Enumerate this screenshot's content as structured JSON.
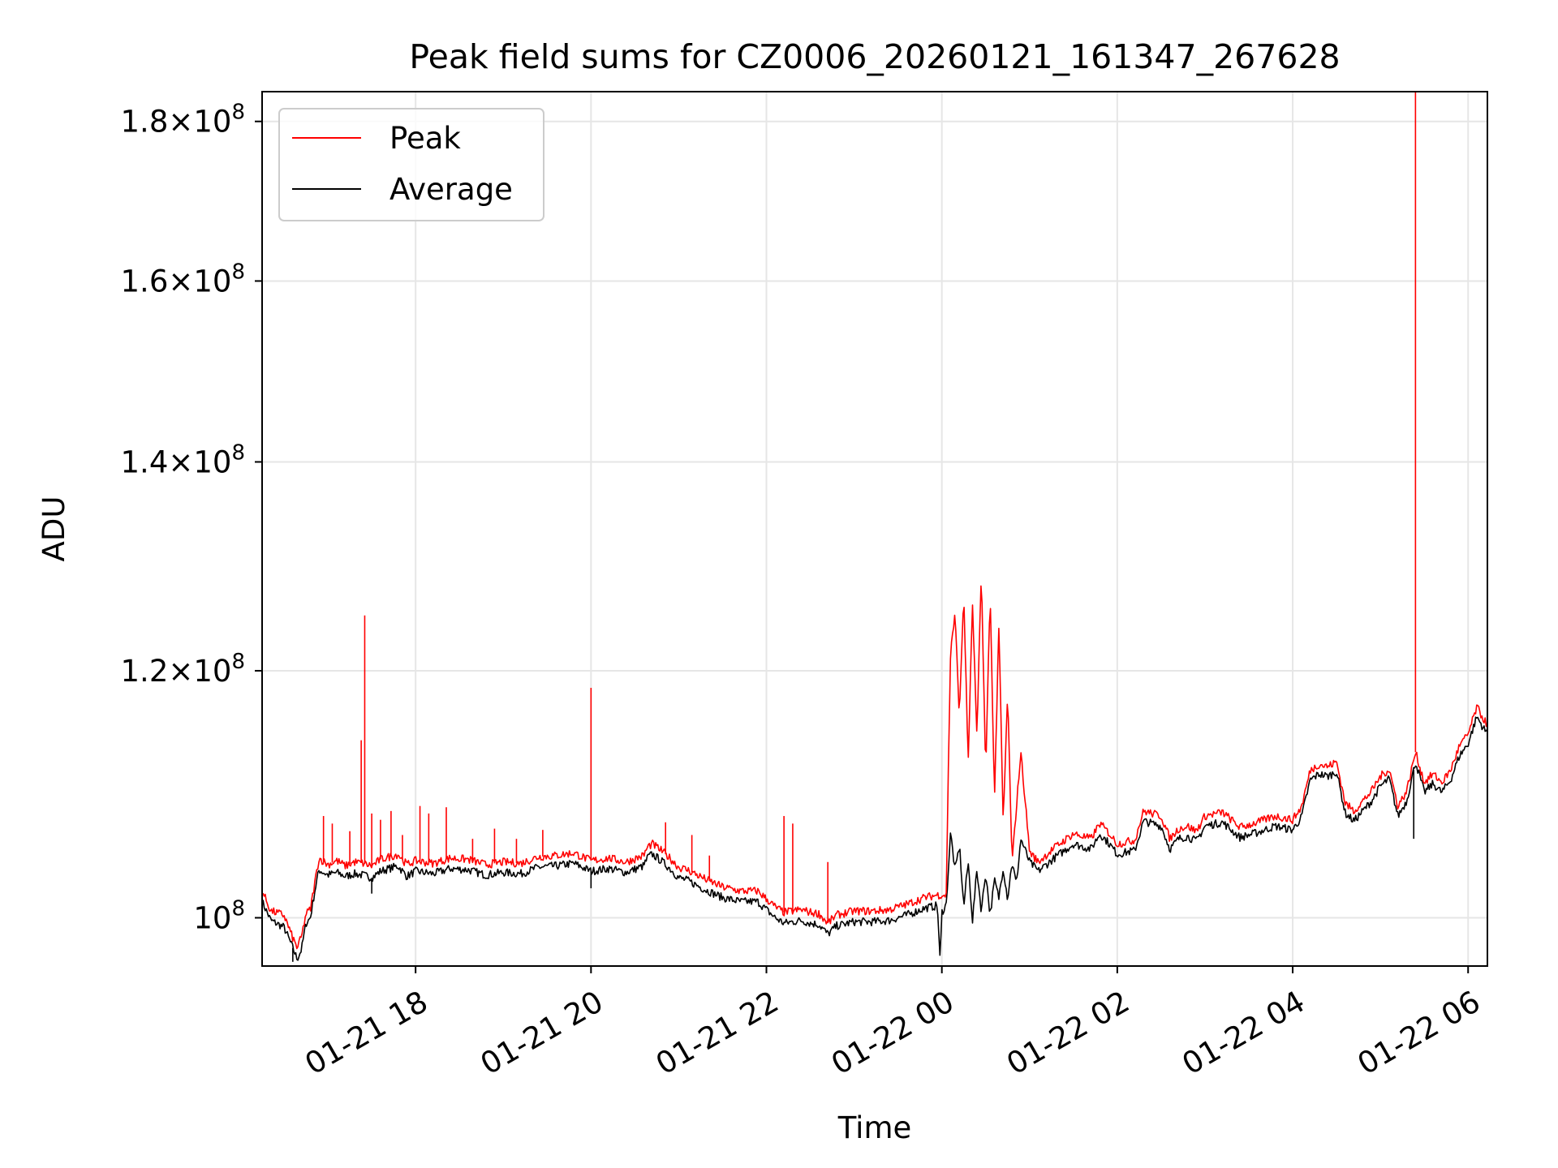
{
  "chart_data": {
    "type": "line",
    "title": "Peak field sums for CZ0006_20260121_161347_267628",
    "xlabel": "Time",
    "ylabel": "ADU",
    "yscale": "log",
    "ylim": [
      96500000,
      184000000
    ],
    "xlim_hours": [
      16.25,
      30.22
    ],
    "x_unit": "hours since 2026-01-21 00:00",
    "grid": true,
    "legend_position": "upper left",
    "y_ticks": [
      {
        "value": 100000000,
        "mantissa": "",
        "exponent": "8"
      },
      {
        "value": 120000000,
        "mantissa": "1.2",
        "exponent": "8"
      },
      {
        "value": 140000000,
        "mantissa": "1.4",
        "exponent": "8"
      },
      {
        "value": 160000000,
        "mantissa": "1.6",
        "exponent": "8"
      },
      {
        "value": 180000000,
        "mantissa": "1.8",
        "exponent": "8"
      }
    ],
    "x_ticks": [
      {
        "hour": 18,
        "label": "01-21 18"
      },
      {
        "hour": 20,
        "label": "01-21 20"
      },
      {
        "hour": 22,
        "label": "01-21 22"
      },
      {
        "hour": 24,
        "label": "01-22 00"
      },
      {
        "hour": 26,
        "label": "01-22 02"
      },
      {
        "hour": 28,
        "label": "01-22 04"
      },
      {
        "hour": 30,
        "label": "01-22 06"
      }
    ],
    "series": [
      {
        "name": "Peak",
        "color": "#ff0000",
        "points": [
          [
            16.25,
            102000000
          ],
          [
            16.35,
            100500000
          ],
          [
            16.5,
            100200000
          ],
          [
            16.6,
            98500000
          ],
          [
            16.65,
            97800000
          ],
          [
            16.7,
            98600000
          ],
          [
            16.75,
            100300000
          ],
          [
            16.8,
            100600000
          ],
          [
            16.85,
            102600000
          ],
          [
            16.9,
            104500000
          ],
          [
            17.0,
            104000000
          ],
          [
            17.1,
            104300000
          ],
          [
            17.2,
            103900000
          ],
          [
            17.3,
            104200000
          ],
          [
            17.4,
            104100000
          ],
          [
            17.5,
            103900000
          ],
          [
            17.6,
            104400000
          ],
          [
            17.7,
            104600000
          ],
          [
            17.8,
            104800000
          ],
          [
            17.9,
            104000000
          ],
          [
            18.0,
            104300000
          ],
          [
            18.2,
            104100000
          ],
          [
            18.4,
            104500000
          ],
          [
            18.6,
            104400000
          ],
          [
            18.8,
            104000000
          ],
          [
            19.0,
            104200000
          ],
          [
            19.2,
            104100000
          ],
          [
            19.4,
            104600000
          ],
          [
            19.6,
            104700000
          ],
          [
            19.8,
            104900000
          ],
          [
            20.0,
            104300000
          ],
          [
            20.2,
            104500000
          ],
          [
            20.4,
            104200000
          ],
          [
            20.6,
            104700000
          ],
          [
            20.65,
            105400000
          ],
          [
            20.7,
            105600000
          ],
          [
            20.8,
            105100000
          ],
          [
            20.9,
            104500000
          ],
          [
            21.0,
            103800000
          ],
          [
            21.1,
            103600000
          ],
          [
            21.3,
            102900000
          ],
          [
            21.5,
            102300000
          ],
          [
            21.7,
            102000000
          ],
          [
            21.9,
            102000000
          ],
          [
            22.0,
            101400000
          ],
          [
            22.1,
            100800000
          ],
          [
            22.2,
            100400000
          ],
          [
            22.4,
            100600000
          ],
          [
            22.5,
            100400000
          ],
          [
            22.6,
            100300000
          ],
          [
            22.7,
            99600000
          ],
          [
            22.8,
            100200000
          ],
          [
            23.0,
            100500000
          ],
          [
            23.2,
            100500000
          ],
          [
            23.4,
            100600000
          ],
          [
            23.6,
            101000000
          ],
          [
            23.8,
            101500000
          ],
          [
            23.95,
            101700000
          ],
          [
            24.05,
            101700000
          ],
          [
            24.1,
            122000000
          ],
          [
            24.15,
            125000000
          ],
          [
            24.2,
            116000000
          ],
          [
            24.25,
            127000000
          ],
          [
            24.3,
            112000000
          ],
          [
            24.35,
            126000000
          ],
          [
            24.4,
            114000000
          ],
          [
            24.45,
            129000000
          ],
          [
            24.5,
            111000000
          ],
          [
            24.55,
            127000000
          ],
          [
            24.6,
            109000000
          ],
          [
            24.65,
            124000000
          ],
          [
            24.7,
            107000000
          ],
          [
            24.75,
            118000000
          ],
          [
            24.8,
            104000000
          ],
          [
            24.9,
            113000000
          ],
          [
            25.0,
            105000000
          ],
          [
            25.1,
            104200000
          ],
          [
            25.3,
            105400000
          ],
          [
            25.5,
            106400000
          ],
          [
            25.7,
            106000000
          ],
          [
            25.8,
            107200000
          ],
          [
            25.9,
            106500000
          ],
          [
            26.0,
            105600000
          ],
          [
            26.2,
            105900000
          ],
          [
            26.3,
            108200000
          ],
          [
            26.4,
            108000000
          ],
          [
            26.5,
            107800000
          ],
          [
            26.6,
            106000000
          ],
          [
            26.7,
            106800000
          ],
          [
            26.8,
            107000000
          ],
          [
            26.9,
            106600000
          ],
          [
            27.0,
            107800000
          ],
          [
            27.2,
            108100000
          ],
          [
            27.4,
            106900000
          ],
          [
            27.6,
            107300000
          ],
          [
            27.8,
            107800000
          ],
          [
            28.0,
            107500000
          ],
          [
            28.1,
            108500000
          ],
          [
            28.2,
            111500000
          ],
          [
            28.3,
            112000000
          ],
          [
            28.4,
            111800000
          ],
          [
            28.5,
            112200000
          ],
          [
            28.6,
            108800000
          ],
          [
            28.7,
            108200000
          ],
          [
            28.8,
            109000000
          ],
          [
            28.9,
            109800000
          ],
          [
            29.0,
            111000000
          ],
          [
            29.1,
            111600000
          ],
          [
            29.2,
            108600000
          ],
          [
            29.3,
            109800000
          ],
          [
            29.4,
            113000000
          ],
          [
            29.5,
            110500000
          ],
          [
            29.6,
            111200000
          ],
          [
            29.7,
            110500000
          ],
          [
            29.8,
            111500000
          ],
          [
            29.9,
            113500000
          ],
          [
            30.0,
            114500000
          ],
          [
            30.1,
            116800000
          ],
          [
            30.2,
            115500000
          ],
          [
            30.22,
            115500000
          ]
        ],
        "spikes": [
          [
            16.95,
            107800000
          ],
          [
            17.05,
            107200000
          ],
          [
            17.25,
            106600000
          ],
          [
            17.38,
            114000000
          ],
          [
            17.42,
            125000000
          ],
          [
            17.5,
            108000000
          ],
          [
            17.6,
            107500000
          ],
          [
            17.72,
            108200000
          ],
          [
            17.85,
            106300000
          ],
          [
            18.05,
            108600000
          ],
          [
            18.15,
            108000000
          ],
          [
            18.35,
            108500000
          ],
          [
            18.65,
            106000000
          ],
          [
            18.9,
            106800000
          ],
          [
            19.15,
            106000000
          ],
          [
            19.45,
            106700000
          ],
          [
            20.0,
            118500000
          ],
          [
            20.85,
            107300000
          ],
          [
            21.15,
            106300000
          ],
          [
            21.35,
            104700000
          ],
          [
            22.2,
            107800000
          ],
          [
            22.3,
            107200000
          ],
          [
            22.7,
            104200000
          ]
        ]
      },
      {
        "name": "Average",
        "color": "#000000",
        "points": [
          [
            16.25,
            101200000
          ],
          [
            16.35,
            99800000
          ],
          [
            16.5,
            99300000
          ],
          [
            16.6,
            97800000
          ],
          [
            16.65,
            97000000
          ],
          [
            16.7,
            97700000
          ],
          [
            16.75,
            99600000
          ],
          [
            16.8,
            100000000
          ],
          [
            16.85,
            102000000
          ],
          [
            16.9,
            103600000
          ],
          [
            17.0,
            103200000
          ],
          [
            17.1,
            103400000
          ],
          [
            17.2,
            103100000
          ],
          [
            17.3,
            103300000
          ],
          [
            17.4,
            103200000
          ],
          [
            17.5,
            103000000
          ],
          [
            17.6,
            103500000
          ],
          [
            17.7,
            103700000
          ],
          [
            17.8,
            103900000
          ],
          [
            17.9,
            103100000
          ],
          [
            18.0,
            103500000
          ],
          [
            18.2,
            103300000
          ],
          [
            18.4,
            103700000
          ],
          [
            18.6,
            103600000
          ],
          [
            18.8,
            103200000
          ],
          [
            19.0,
            103400000
          ],
          [
            19.2,
            103300000
          ],
          [
            19.4,
            103800000
          ],
          [
            19.6,
            103900000
          ],
          [
            19.8,
            104100000
          ],
          [
            20.0,
            103500000
          ],
          [
            20.2,
            103700000
          ],
          [
            20.4,
            103400000
          ],
          [
            20.6,
            103900000
          ],
          [
            20.65,
            104600000
          ],
          [
            20.7,
            104800000
          ],
          [
            20.8,
            104300000
          ],
          [
            20.9,
            103700000
          ],
          [
            21.0,
            103000000
          ],
          [
            21.1,
            102800000
          ],
          [
            21.3,
            102100000
          ],
          [
            21.5,
            101500000
          ],
          [
            21.7,
            101200000
          ],
          [
            21.9,
            101200000
          ],
          [
            22.0,
            100600000
          ],
          [
            22.1,
            100000000
          ],
          [
            22.2,
            99600000
          ],
          [
            22.4,
            99800000
          ],
          [
            22.5,
            99600000
          ],
          [
            22.6,
            99500000
          ],
          [
            22.7,
            98800000
          ],
          [
            22.8,
            99400000
          ],
          [
            23.0,
            99700000
          ],
          [
            23.2,
            99700000
          ],
          [
            23.4,
            99800000
          ],
          [
            23.6,
            100200000
          ],
          [
            23.8,
            100700000
          ],
          [
            23.95,
            100900000
          ],
          [
            23.98,
            96800000
          ],
          [
            24.0,
            100400000
          ],
          [
            24.05,
            101000000
          ],
          [
            24.1,
            106500000
          ],
          [
            24.15,
            103500000
          ],
          [
            24.2,
            105500000
          ],
          [
            24.25,
            100800000
          ],
          [
            24.3,
            104200000
          ],
          [
            24.35,
            99800000
          ],
          [
            24.4,
            103600000
          ],
          [
            24.45,
            100500000
          ],
          [
            24.5,
            103400000
          ],
          [
            24.55,
            100200000
          ],
          [
            24.6,
            102800000
          ],
          [
            24.65,
            101500000
          ],
          [
            24.7,
            103800000
          ],
          [
            24.75,
            101400000
          ],
          [
            24.8,
            104200000
          ],
          [
            24.85,
            102500000
          ],
          [
            24.9,
            106000000
          ],
          [
            25.0,
            104200000
          ],
          [
            25.1,
            103500000
          ],
          [
            25.3,
            104600000
          ],
          [
            25.5,
            105600000
          ],
          [
            25.7,
            105200000
          ],
          [
            25.8,
            106400000
          ],
          [
            25.9,
            105700000
          ],
          [
            26.0,
            104800000
          ],
          [
            26.2,
            105100000
          ],
          [
            26.3,
            107400000
          ],
          [
            26.4,
            107200000
          ],
          [
            26.5,
            107000000
          ],
          [
            26.6,
            105200000
          ],
          [
            26.7,
            106000000
          ],
          [
            26.8,
            106200000
          ],
          [
            26.9,
            105800000
          ],
          [
            27.0,
            107000000
          ],
          [
            27.2,
            107300000
          ],
          [
            27.4,
            106100000
          ],
          [
            27.6,
            106500000
          ],
          [
            27.8,
            107000000
          ],
          [
            28.0,
            106700000
          ],
          [
            28.1,
            107700000
          ],
          [
            28.2,
            110700000
          ],
          [
            28.3,
            111200000
          ],
          [
            28.4,
            111000000
          ],
          [
            28.5,
            111400000
          ],
          [
            28.6,
            108000000
          ],
          [
            28.7,
            107400000
          ],
          [
            28.8,
            108200000
          ],
          [
            28.9,
            109000000
          ],
          [
            29.0,
            110200000
          ],
          [
            29.1,
            110800000
          ],
          [
            29.2,
            107800000
          ],
          [
            29.3,
            109000000
          ],
          [
            29.4,
            112200000
          ],
          [
            29.5,
            109700000
          ],
          [
            29.6,
            110400000
          ],
          [
            29.7,
            109700000
          ],
          [
            29.8,
            110700000
          ],
          [
            29.9,
            112700000
          ],
          [
            30.0,
            113700000
          ],
          [
            30.1,
            116000000
          ],
          [
            30.2,
            114700000
          ],
          [
            30.22,
            114700000
          ]
        ],
        "spikes": [
          [
            16.6,
            96800000
          ],
          [
            17.5,
            101800000
          ],
          [
            20.0,
            102200000
          ],
          [
            29.38,
            106000000
          ]
        ]
      }
    ],
    "extra_peak_spike": {
      "hour": 29.4,
      "value": 184000000
    }
  }
}
